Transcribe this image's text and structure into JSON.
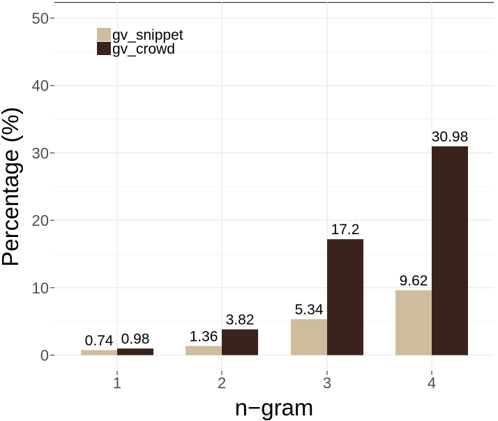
{
  "chart_data": {
    "type": "bar",
    "title": "",
    "xlabel": "n−gram",
    "ylabel": "Percentage (%)",
    "categories": [
      "1",
      "2",
      "3",
      "4"
    ],
    "ylim": [
      0,
      52
    ],
    "yticks": [
      "0",
      "10",
      "20",
      "30",
      "40",
      "50"
    ],
    "ytick_values": [
      0,
      10,
      20,
      30,
      40,
      50
    ],
    "grid": true,
    "legend_position": "top-left",
    "series": [
      {
        "name": "gv_snippet",
        "color": "#CDBD9C",
        "values": [
          0.74,
          1.36,
          5.34,
          9.62
        ],
        "labels": [
          "0.74",
          "1.36",
          "5.34",
          "9.62"
        ]
      },
      {
        "name": "gv_crowd",
        "color": "#3A231C",
        "values": [
          0.98,
          3.82,
          17.2,
          30.98
        ],
        "labels": [
          "0.98",
          "3.82",
          "17.2",
          "30.98"
        ]
      }
    ]
  }
}
